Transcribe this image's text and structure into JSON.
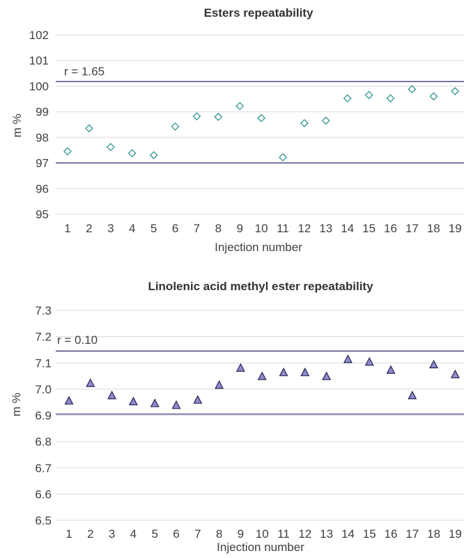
{
  "colors": {
    "grid": "#d9d9d9",
    "limit_line": "#3d3a7c",
    "diamond_stroke": "#3f9a9a",
    "triangle_fill": "#8f8ccc",
    "triangle_stroke": "#262455",
    "text": "#404040"
  },
  "chart_data": [
    {
      "type": "scatter",
      "title": "Esters repeatability",
      "xlabel": "Injection number",
      "ylabel": "m %",
      "ylim": [
        95,
        102
      ],
      "yticks": [
        95,
        96,
        97,
        98,
        99,
        100,
        101,
        102
      ],
      "ytick_labels": [
        "95",
        "96",
        "97",
        "98",
        "99",
        "100",
        "101",
        "102"
      ],
      "x": [
        1,
        2,
        3,
        4,
        5,
        6,
        7,
        8,
        9,
        10,
        11,
        12,
        13,
        14,
        15,
        16,
        17,
        18,
        19
      ],
      "xtick_labels": [
        "1",
        "2",
        "3",
        "4",
        "5",
        "6",
        "7",
        "8",
        "9",
        "10",
        "11",
        "12",
        "13",
        "14",
        "15",
        "16",
        "17",
        "18",
        "19"
      ],
      "series": [
        {
          "marker": "diamond",
          "values": [
            97.45,
            98.35,
            97.62,
            97.38,
            97.3,
            98.42,
            98.82,
            98.8,
            99.22,
            98.75,
            97.22,
            98.55,
            98.65,
            99.52,
            99.65,
            99.52,
            99.88,
            99.6,
            99.8
          ]
        }
      ],
      "limits": [
        97.0,
        100.18
      ],
      "annotation": "r = 1.65",
      "grid": true
    },
    {
      "type": "scatter",
      "title": "Linolenic acid methyl ester repeatability",
      "xlabel": "Injection number",
      "ylabel": "m %",
      "ylim": [
        6.5,
        7.3
      ],
      "yticks": [
        6.5,
        6.6,
        6.7,
        6.8,
        6.9,
        7.0,
        7.1,
        7.2,
        7.3
      ],
      "ytick_labels": [
        "6.5",
        "6.6",
        "6.7",
        "6.8",
        "6.9",
        "7.0",
        "7.1",
        "7.2",
        "7.3"
      ],
      "x": [
        1,
        2,
        3,
        4,
        5,
        6,
        7,
        8,
        9,
        10,
        11,
        12,
        13,
        14,
        15,
        16,
        17,
        18,
        19
      ],
      "xtick_labels": [
        "1",
        "2",
        "3",
        "4",
        "5",
        "6",
        "7",
        "8",
        "9",
        "10",
        "11",
        "12",
        "13",
        "14",
        "15",
        "16",
        "17",
        "18",
        "19"
      ],
      "series": [
        {
          "marker": "triangle",
          "values": [
            6.955,
            7.022,
            6.975,
            6.952,
            6.945,
            6.938,
            6.958,
            7.015,
            7.08,
            7.048,
            7.063,
            7.063,
            7.048,
            7.113,
            7.103,
            7.072,
            6.975,
            7.093,
            7.055
          ]
        }
      ],
      "limits": [
        6.905,
        7.145
      ],
      "annotation": "r = 0.10",
      "grid": true
    }
  ]
}
